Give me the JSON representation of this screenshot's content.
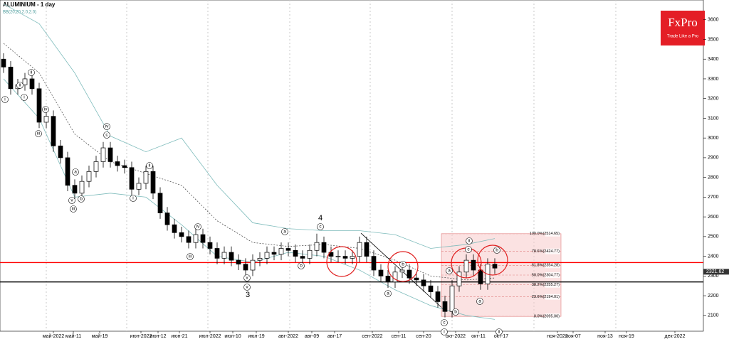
{
  "chart_data": {
    "type": "candlestick",
    "title": "ALUMINIUM - 1 day",
    "indicator": "BB(20,20,2.0,2.0)",
    "ylim": [
      2020,
      3700
    ],
    "yticks": [
      2100,
      2200,
      2300,
      2400,
      2500,
      2600,
      2700,
      2800,
      2900,
      3000,
      3100,
      3200,
      3300,
      3400,
      3500,
      3600
    ],
    "x_labels": [
      "май-2022",
      "май-11",
      "май-19",
      "июн-2022",
      "июн-12",
      "июн-21",
      "июл-2022",
      "июл-10",
      "июл-19",
      "авг-2022",
      "авг-09",
      "авг-17",
      "сен-2022",
      "сен-11",
      "сен-20",
      "окт-2022",
      "окт-11",
      "окт-17",
      "ноя-2022",
      "ноя-07",
      "ноя-13",
      "ноя-19",
      "дек-2022"
    ],
    "open": [
      3400,
      3360,
      3250,
      3270,
      3300,
      3250,
      3080,
      3110,
      2960,
      2900,
      2760,
      2720,
      2780,
      2830,
      2880,
      2950,
      2880,
      2860,
      2850,
      2740,
      2770,
      2830,
      2720,
      2620,
      2560,
      2520,
      2500,
      2470,
      2510,
      2470,
      2440,
      2390,
      2420,
      2380,
      2360,
      2330,
      2380,
      2390,
      2420,
      2410,
      2440,
      2430,
      2400,
      2390,
      2430,
      2470,
      2420,
      2400,
      2400,
      2390,
      2400,
      2470,
      2400,
      2330,
      2300,
      2270,
      2320,
      2330,
      2290,
      2280,
      2250,
      2220,
      2170,
      2120,
      2250,
      2320,
      2380,
      2330,
      2260,
      2360
    ],
    "close": [
      3360,
      3250,
      3270,
      3300,
      3250,
      3080,
      3110,
      2960,
      2900,
      2760,
      2720,
      2780,
      2830,
      2880,
      2950,
      2880,
      2860,
      2850,
      2740,
      2770,
      2830,
      2720,
      2620,
      2560,
      2520,
      2500,
      2470,
      2510,
      2470,
      2440,
      2390,
      2420,
      2380,
      2360,
      2330,
      2380,
      2390,
      2420,
      2410,
      2440,
      2430,
      2400,
      2390,
      2430,
      2470,
      2420,
      2400,
      2400,
      2390,
      2400,
      2470,
      2400,
      2330,
      2300,
      2270,
      2320,
      2330,
      2290,
      2280,
      2250,
      2220,
      2170,
      2120,
      2250,
      2320,
      2380,
      2330,
      2260,
      2360,
      2340
    ],
    "high": [
      3430,
      3390,
      3300,
      3330,
      3330,
      3280,
      3140,
      3140,
      2990,
      2930,
      2790,
      2810,
      2860,
      2910,
      2980,
      2980,
      2910,
      2890,
      2880,
      2800,
      2860,
      2860,
      2750,
      2650,
      2590,
      2550,
      2530,
      2540,
      2540,
      2500,
      2470,
      2450,
      2450,
      2410,
      2390,
      2410,
      2420,
      2450,
      2450,
      2470,
      2470,
      2460,
      2430,
      2460,
      2515,
      2500,
      2450,
      2430,
      2430,
      2430,
      2500,
      2500,
      2430,
      2360,
      2330,
      2350,
      2360,
      2360,
      2320,
      2310,
      2280,
      2250,
      2200,
      2280,
      2350,
      2410,
      2410,
      2360,
      2390,
      2390
    ],
    "low": [
      3330,
      3220,
      3220,
      3240,
      3220,
      3050,
      3050,
      2930,
      2870,
      2730,
      2690,
      2690,
      2750,
      2800,
      2850,
      2850,
      2830,
      2820,
      2710,
      2710,
      2740,
      2690,
      2590,
      2530,
      2490,
      2470,
      2440,
      2440,
      2440,
      2410,
      2360,
      2360,
      2350,
      2330,
      2300,
      2300,
      2350,
      2360,
      2380,
      2380,
      2400,
      2370,
      2360,
      2360,
      2400,
      2390,
      2370,
      2370,
      2360,
      2360,
      2370,
      2370,
      2300,
      2270,
      2240,
      2240,
      2290,
      2260,
      2250,
      2220,
      2190,
      2140,
      2090,
      2090,
      2220,
      2290,
      2300,
      2230,
      2230,
      2310
    ],
    "bands": {
      "x": [
        0,
        5,
        10,
        15,
        20,
        25,
        30,
        35,
        40,
        45,
        50,
        55,
        60,
        65,
        69
      ],
      "upper": [
        3680,
        3580,
        3330,
        3010,
        2930,
        3000,
        2760,
        2570,
        2540,
        2530,
        2530,
        2510,
        2440,
        2460,
        2490
      ],
      "middle": [
        3480,
        3330,
        3020,
        2880,
        2820,
        2760,
        2580,
        2470,
        2450,
        2460,
        2440,
        2380,
        2300,
        2280,
        2290
      ],
      "lower": [
        3300,
        3100,
        2700,
        2720,
        2700,
        2560,
        2400,
        2370,
        2420,
        2400,
        2330,
        2230,
        2150,
        2100,
        2080
      ]
    },
    "fib_levels": [
      {
        "value": 2514.65,
        "label": "100.0%(2514.65)"
      },
      {
        "value": 2424.77,
        "label": "78.6%(2424.77)"
      },
      {
        "value": 2354.28,
        "label": "61.8%(2354.28)"
      },
      {
        "value": 2304.77,
        "label": "50.0%(2304.77)"
      },
      {
        "value": 2255.27,
        "label": "38.2%(2255.27)"
      },
      {
        "value": 2194.01,
        "label": "23.6%(2194.01)"
      },
      {
        "value": 2095.0,
        "label": "0.0%(2095.00)"
      }
    ],
    "levels": [
      {
        "value": 2368,
        "color": "#ff0000"
      },
      {
        "value": 2270,
        "color": "#000000"
      }
    ],
    "last_price": 2321.62,
    "annotations": [
      "i",
      "ii",
      "i",
      "ii",
      "iv",
      "iii",
      "a",
      "v",
      "b",
      "iii",
      "iv",
      "c",
      "i",
      "ii",
      "iii",
      "iv",
      "v",
      "v",
      "3",
      "a",
      "b",
      "c",
      "4",
      "a",
      "b",
      "c",
      "i",
      "b",
      "a",
      "c",
      "ii",
      "a",
      "b",
      "ii"
    ]
  },
  "brand": {
    "name": "FxPro",
    "tagline": "Trade Like a Pro"
  }
}
